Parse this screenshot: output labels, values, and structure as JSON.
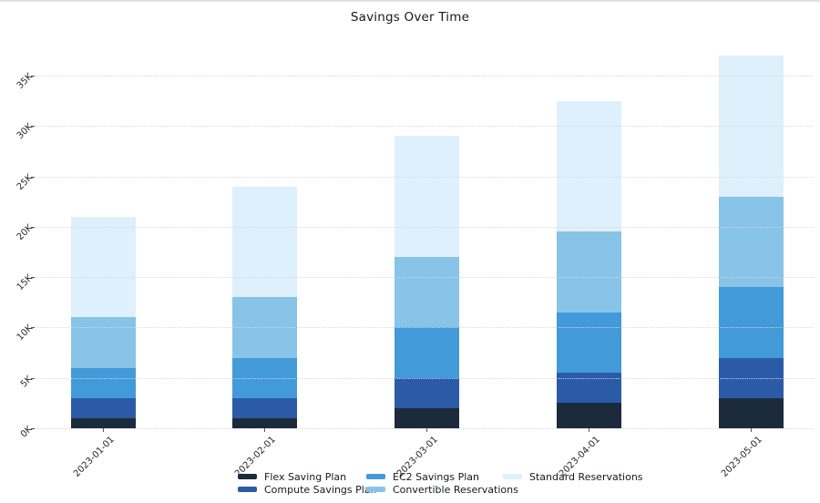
{
  "chart_data": {
    "type": "bar",
    "stacked": true,
    "title": "Savings Over Time",
    "categories": [
      "2023-01-01",
      "2023-02-01",
      "2023-03-01",
      "2023-04-01",
      "2023-05-01"
    ],
    "series": [
      {
        "name": "Flex Saving Plan",
        "color": "#1c2b3c",
        "values": [
          1000,
          1000,
          2000,
          2500,
          3000
        ]
      },
      {
        "name": "Compute Savings Plan",
        "color": "#2b5ba6",
        "values": [
          2000,
          2000,
          3000,
          3000,
          4000
        ]
      },
      {
        "name": "EC2 Savings Plan",
        "color": "#429ad8",
        "values": [
          3000,
          4000,
          5000,
          6000,
          7000
        ]
      },
      {
        "name": "Convertible Reservations",
        "color": "#88c3e8",
        "values": [
          5000,
          6000,
          7000,
          8000,
          9000
        ]
      },
      {
        "name": "Standard Reservations",
        "color": "#def0fb",
        "values": [
          10000,
          11000,
          12000,
          13000,
          14000
        ]
      }
    ],
    "totals": [
      21000,
      24000,
      29000,
      32500,
      37000
    ],
    "y_ticks": [
      {
        "label": "0K",
        "value": 0
      },
      {
        "label": "5K",
        "value": 5000
      },
      {
        "label": "10K",
        "value": 10000
      },
      {
        "label": "15K",
        "value": 15000
      },
      {
        "label": "20K",
        "value": 20000
      },
      {
        "label": "25K",
        "value": 25000
      },
      {
        "label": "30K",
        "value": 30000
      },
      {
        "label": "35K",
        "value": 35000
      }
    ],
    "ylim": [
      0,
      38000
    ],
    "grid": "horizontal-dotted",
    "legend_position": "bottom",
    "legend_columns": [
      [
        "Flex Saving Plan",
        "Compute Savings Plan"
      ],
      [
        "EC2 Savings Plan",
        "Convertible Reservations"
      ],
      [
        "Standard Reservations"
      ]
    ]
  }
}
